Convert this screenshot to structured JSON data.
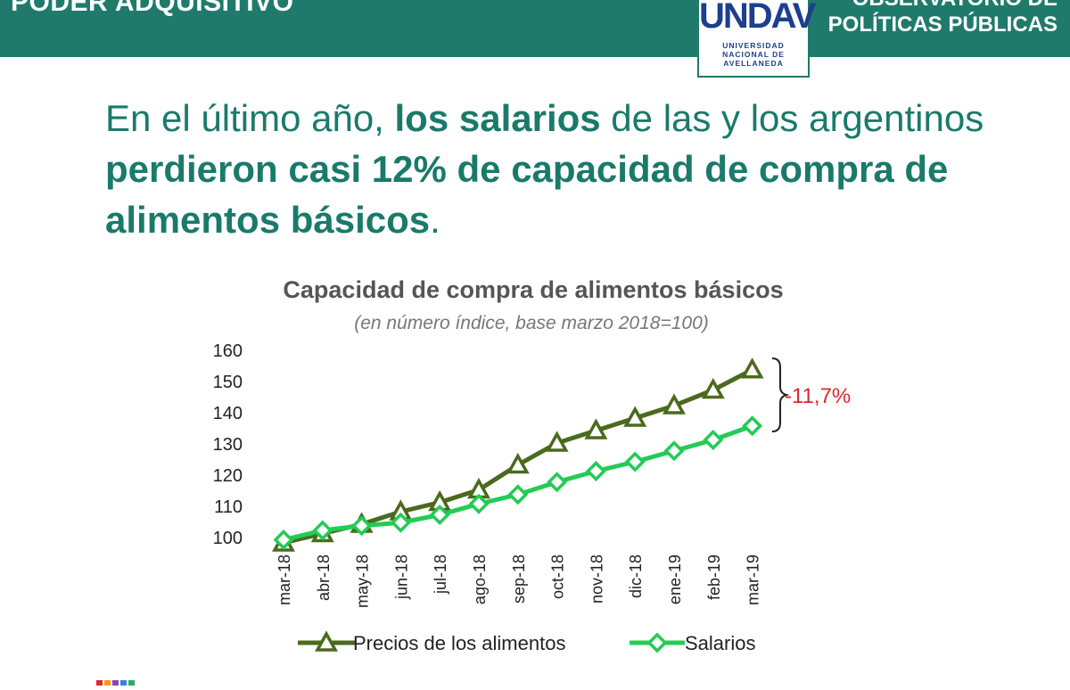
{
  "header": {
    "left_title": "PODER ADQUISITIVO",
    "right_title_line1": "OBSERVATORIO DE",
    "right_title_line2": "POLÍTICAS PÚBLICAS"
  },
  "logo": {
    "mark": "UNDAV",
    "line1": "UNIVERSIDAD",
    "line2": "NACIONAL DE",
    "line3": "AVELLANEDA"
  },
  "headline": {
    "p1": "En el último año, ",
    "b1": "los salarios",
    "p2": " de las y los argentinos ",
    "b2": "perdieron casi 12% de capacidad de compra de alimentos básicos",
    "p3": "."
  },
  "colors": {
    "teal": "#1f7a6c",
    "prices_series": "#4a6a1e",
    "salary_series": "#22cc55",
    "annotation": "#e0282d"
  },
  "chart_data": {
    "type": "line",
    "title": "Capacidad de compra de alimentos básicos",
    "subtitle": "(en número índice, base marzo 2018=100)",
    "categories": [
      "mar-18",
      "abr-18",
      "may-18",
      "jun-18",
      "jul-18",
      "ago-18",
      "sep-18",
      "oct-18",
      "nov-18",
      "dic-18",
      "ene-19",
      "feb-19",
      "mar-19"
    ],
    "yticks": [
      100,
      110,
      120,
      130,
      140,
      150,
      160
    ],
    "ylim": [
      100,
      160
    ],
    "series": [
      {
        "name": "Precios de los alimentos",
        "marker": "triangle",
        "values": [
          98,
          101,
          104,
          108,
          111,
          115,
          123,
          130,
          134,
          138,
          142,
          147,
          153.5
        ]
      },
      {
        "name": "Salarios",
        "marker": "diamond",
        "values": [
          99,
          102,
          103.5,
          104.5,
          107,
          110.5,
          113.5,
          117.5,
          121,
          124,
          127.5,
          131,
          135.5
        ]
      }
    ],
    "annotation": "-11,7%",
    "legend_position": "bottom",
    "grid": false
  }
}
